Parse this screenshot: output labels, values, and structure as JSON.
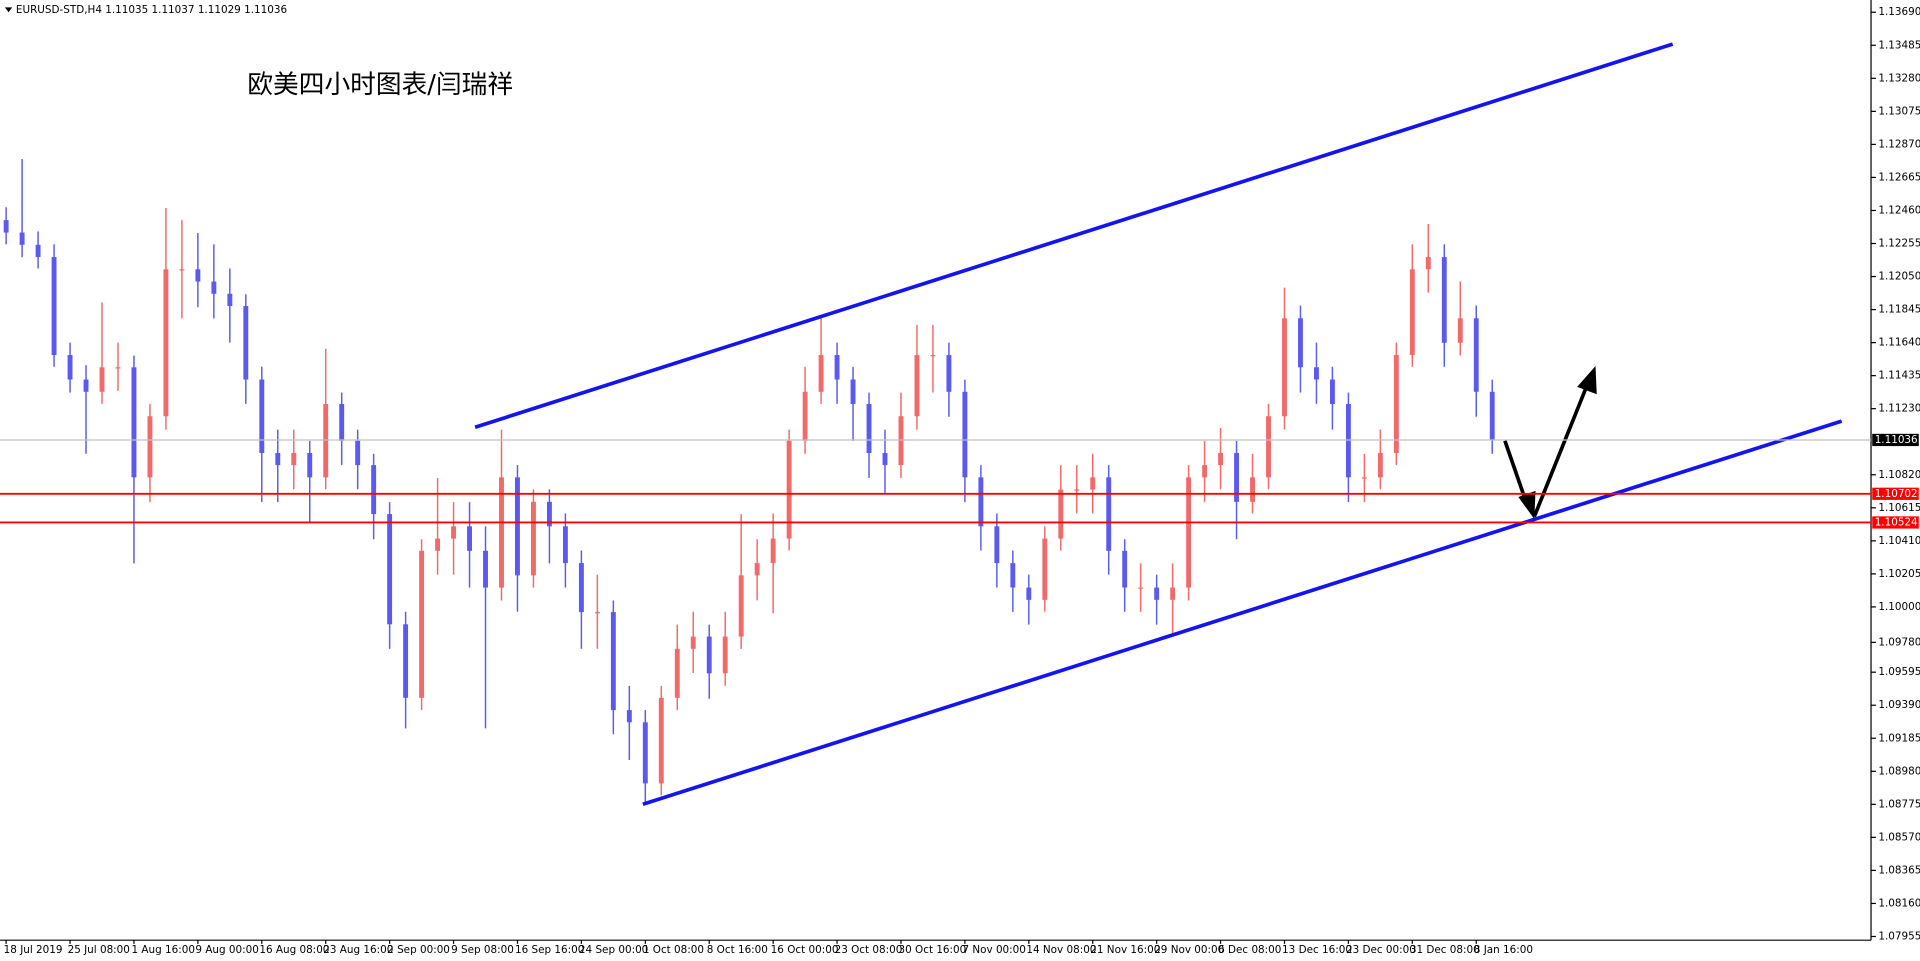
{
  "chart_data": {
    "type": "candlestick",
    "symbol": "EURUSD-STD,H4",
    "quote": [
      1.11035,
      1.11037,
      1.11029,
      1.11036
    ],
    "title": "欧美四小时图表/闫瑞祥",
    "up_color": "#f06a6a",
    "down_color": "#5a5af0",
    "categories": [
      "18 Jul 2019",
      null,
      null,
      null,
      "25 Jul 08:00",
      null,
      null,
      null,
      "1 Aug 16:00",
      null,
      null,
      null,
      "9 Aug 00:00",
      null,
      null,
      null,
      "16 Aug 08:00",
      null,
      null,
      null,
      "23 Aug 16:00",
      null,
      null,
      null,
      "2 Sep 00:00",
      null,
      null,
      null,
      "9 Sep 08:00",
      null,
      null,
      null,
      "16 Sep 16:00",
      null,
      null,
      null,
      "24 Sep 00:00",
      null,
      null,
      null,
      "1 Oct 08:00",
      null,
      null,
      null,
      "8 Oct 16:00",
      null,
      null,
      null,
      "16 Oct 00:00",
      null,
      null,
      null,
      "23 Oct 08:00",
      null,
      null,
      null,
      "30 Oct 16:00",
      null,
      null,
      null,
      "7 Nov 00:00",
      null,
      null,
      null,
      "14 Nov 08:00",
      null,
      null,
      null,
      "21 Nov 16:00",
      null,
      null,
      null,
      "29 Nov 00:00",
      null,
      null,
      null,
      "6 Dec 08:00",
      null,
      null,
      null,
      "13 Dec 16:00",
      null,
      null,
      null,
      "23 Dec 00:00",
      null,
      null,
      null,
      "31 Dec 08:00",
      null,
      null,
      null,
      "8 Jan 16:00",
      null
    ],
    "open": [
      1.124,
      1.12323,
      1.12247,
      1.12171,
      1.11563,
      1.11411,
      1.11335,
      1.11487,
      1.11487,
      1.10804,
      1.11183,
      1.12095,
      1.12095,
      1.12019,
      1.11943,
      1.11867,
      1.11411,
      1.10955,
      1.1088,
      1.10955,
      1.10804,
      1.11259,
      1.11031,
      1.1088,
      1.10576,
      1.09892,
      1.09436,
      1.10348,
      1.10424,
      1.105,
      1.10348,
      1.1012,
      1.10804,
      1.10196,
      1.10652,
      1.105,
      1.10272,
      1.09968,
      1.09968,
      1.0936,
      1.09284,
      1.08905,
      1.09436,
      1.0974,
      1.09816,
      1.09588,
      1.09816,
      1.10196,
      1.10272,
      1.10424,
      1.11031,
      1.11335,
      1.11563,
      1.11411,
      1.11259,
      1.10955,
      1.1088,
      1.11183,
      1.11563,
      1.11563,
      1.11335,
      1.10804,
      1.105,
      1.10272,
      1.1012,
      1.10044,
      1.10424,
      1.10728,
      1.10728,
      1.10804,
      1.10348,
      1.1012,
      1.1012,
      1.10044,
      1.1012,
      1.10804,
      1.1088,
      1.10955,
      1.10652,
      1.10804,
      1.11183,
      1.11791,
      1.11487,
      1.11411,
      1.11259,
      1.10804,
      1.10804,
      1.10955,
      1.11563,
      1.12095,
      1.12171,
      1.11639,
      1.11791,
      1.11335
    ],
    "high": [
      1.1248,
      1.12779,
      1.1233,
      1.1225,
      1.1164,
      1.115,
      1.1189,
      1.1164,
      1.1156,
      1.1126,
      1.12475,
      1.124,
      1.1232,
      1.1225,
      1.121,
      1.1194,
      1.1149,
      1.111,
      1.111,
      1.1103,
      1.11601,
      1.1133,
      1.111,
      1.1095,
      1.1065,
      1.0997,
      1.1042,
      1.108,
      1.1065,
      1.1065,
      1.105,
      1.111,
      1.1088,
      1.1073,
      1.1073,
      1.1058,
      1.1035,
      1.102,
      1.1004,
      1.0951,
      1.0936,
      1.0951,
      1.0989,
      1.0997,
      1.0989,
      1.0997,
      1.10576,
      1.1042,
      1.1058,
      1.111,
      1.1149,
      1.11791,
      1.1164,
      1.1149,
      1.1133,
      1.111,
      1.1133,
      1.1175,
      1.1175,
      1.1164,
      1.1141,
      1.1088,
      1.1058,
      1.1035,
      1.102,
      1.105,
      1.1088,
      1.1088,
      1.1095,
      1.1088,
      1.1042,
      1.1027,
      1.102,
      1.1027,
      1.1088,
      1.1103,
      1.1111,
      1.1103,
      1.1095,
      1.1126,
      1.11981,
      1.1187,
      1.1164,
      1.1149,
      1.1133,
      1.1095,
      1.111,
      1.1164,
      1.1225,
      1.12376,
      1.1225,
      1.1202,
      1.1187,
      1.1141
    ],
    "low": [
      1.1225,
      1.1217,
      1.121,
      1.1149,
      1.1133,
      1.1095,
      1.1126,
      1.1134,
      1.1027,
      1.1065,
      1.111,
      1.1179,
      1.1186,
      1.1179,
      1.1164,
      1.1126,
      1.1065,
      1.1065,
      1.1073,
      1.1052,
      1.1073,
      1.1088,
      1.1073,
      1.1042,
      1.0974,
      1.09246,
      1.0936,
      1.102,
      1.102,
      1.1012,
      1.09246,
      1.1004,
      1.0997,
      1.1012,
      1.1027,
      1.1012,
      1.0974,
      1.0974,
      1.0921,
      1.0905,
      1.08775,
      1.0883,
      1.0936,
      1.0959,
      1.0943,
      1.0951,
      1.0974,
      1.1004,
      1.0996,
      1.1035,
      1.1095,
      1.1126,
      1.1126,
      1.1103,
      1.108,
      1.107,
      1.108,
      1.111,
      1.1133,
      1.1118,
      1.1065,
      1.1035,
      1.1012,
      1.0997,
      1.0989,
      1.0997,
      1.1035,
      1.1058,
      1.1058,
      1.102,
      1.0997,
      1.0997,
      1.0989,
      1.09816,
      1.1004,
      1.1065,
      1.1073,
      1.1042,
      1.1058,
      1.1073,
      1.111,
      1.1133,
      1.1126,
      1.111,
      1.1065,
      1.1065,
      1.1073,
      1.1088,
      1.1149,
      1.1195,
      1.1149,
      1.1156,
      1.1118,
      1.1095
    ],
    "close": [
      1.12323,
      1.12247,
      1.12171,
      1.11563,
      1.11411,
      1.11335,
      1.11487,
      1.11487,
      1.10804,
      1.11183,
      1.12095,
      1.12095,
      1.12019,
      1.11943,
      1.11867,
      1.11411,
      1.10955,
      1.1088,
      1.10955,
      1.10804,
      1.11259,
      1.11031,
      1.1088,
      1.10576,
      1.09892,
      1.09436,
      1.10348,
      1.10424,
      1.105,
      1.10348,
      1.1012,
      1.10804,
      1.10196,
      1.10652,
      1.105,
      1.10272,
      1.09968,
      1.09968,
      1.0936,
      1.09284,
      1.08905,
      1.09436,
      1.0974,
      1.09816,
      1.09588,
      1.09816,
      1.10196,
      1.10272,
      1.10424,
      1.11031,
      1.11335,
      1.11563,
      1.11411,
      1.11259,
      1.10955,
      1.1088,
      1.11183,
      1.11563,
      1.11563,
      1.11335,
      1.10804,
      1.105,
      1.10272,
      1.1012,
      1.10044,
      1.10424,
      1.10728,
      1.10728,
      1.10804,
      1.10348,
      1.1012,
      1.1012,
      1.10044,
      1.1012,
      1.10804,
      1.1088,
      1.10955,
      1.10652,
      1.10804,
      1.11183,
      1.11791,
      1.11487,
      1.11411,
      1.11259,
      1.10804,
      1.10804,
      1.10955,
      1.11563,
      1.12095,
      1.12171,
      1.11639,
      1.11791,
      1.11335,
      1.11036
    ],
    "ylim": [
      1.07932,
      1.13766
    ],
    "yticks": [
      {
        "value": 1.1369,
        "label": "1.13690"
      },
      1.13485,
      {
        "value": 1.1328,
        "label": "1.13280"
      },
      1.13075,
      {
        "value": 1.1287,
        "label": "1.12870"
      },
      1.12665,
      {
        "value": 1.1246,
        "label": "1.12460"
      },
      1.12255,
      {
        "value": 1.1205,
        "label": "1.12050"
      },
      1.11845,
      {
        "value": 1.1164,
        "label": "1.11640"
      },
      1.11435,
      {
        "value": 1.1123,
        "label": "1.11230"
      },
      {
        "value": 1.1082,
        "label": "1.10820"
      },
      1.10615,
      {
        "value": 1.1041,
        "label": "1.10410"
      },
      1.10205,
      {
        "value": 1.1,
        "label": "1.10000"
      },
      {
        "value": 1.0978,
        "label": "1.09780"
      },
      1.09595,
      {
        "value": 1.0939,
        "label": "1.09390"
      },
      1.09185,
      {
        "value": 1.0898,
        "label": "1.08980"
      },
      1.08775,
      {
        "value": 1.0857,
        "label": "1.08570"
      },
      1.08365,
      {
        "value": 1.0816,
        "label": "1.08160"
      },
      1.07955
    ],
    "current_price": 1.11036,
    "levels": [
      {
        "value": 1.10702,
        "color": "#ff0000"
      },
      {
        "value": 1.10524,
        "color": "#ff0000"
      }
    ]
  }
}
